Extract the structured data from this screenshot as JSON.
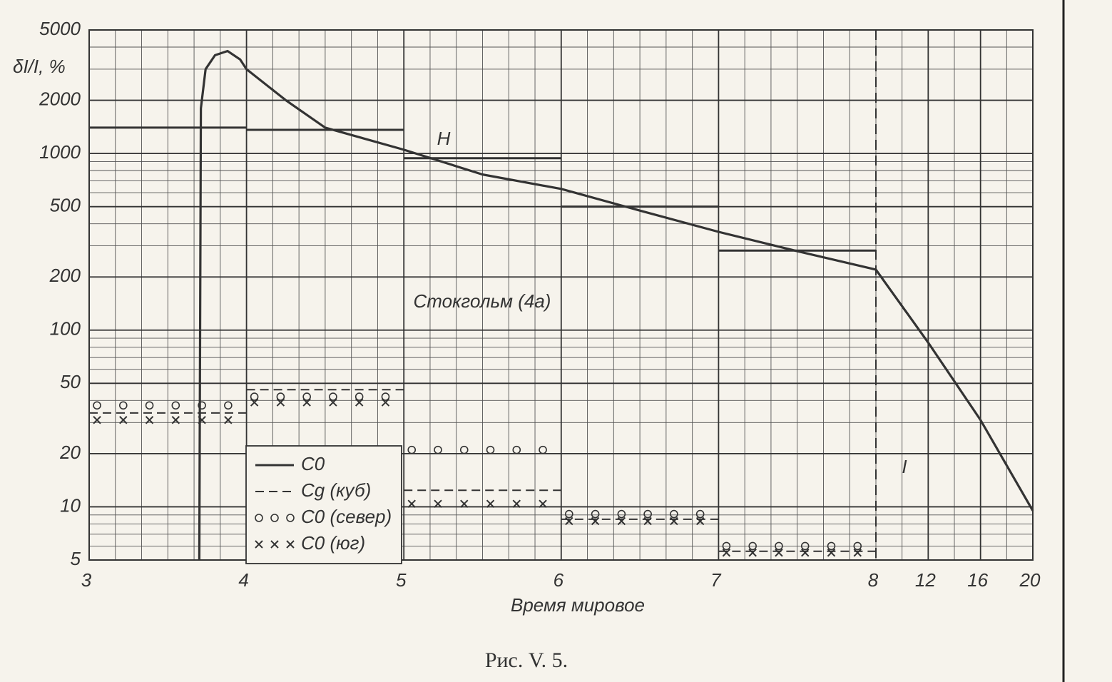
{
  "chart_data": {
    "type": "line",
    "ylabel": "δI/I, %",
    "xlabel": "Время мировое",
    "caption": "Рис. V. 5.",
    "annotations": [
      "H",
      "Стокгольм (4а)",
      "I"
    ],
    "xlim": [
      3,
      20
    ],
    "x_break": 8,
    "xticks": [
      3,
      4,
      5,
      6,
      7,
      8,
      12,
      16,
      20
    ],
    "ylim": [
      5,
      5000
    ],
    "yticks": [
      5,
      10,
      20,
      50,
      100,
      200,
      500,
      1000,
      2000,
      5000
    ],
    "log_y": true,
    "grid": true,
    "minor_grid": true,
    "legend": "lower-left",
    "curve": {
      "x": [
        3.7,
        3.71,
        3.74,
        3.8,
        3.88,
        3.96,
        4.0,
        4.25,
        4.5,
        5.0,
        5.5,
        6.0,
        6.5,
        7.0,
        7.5,
        8.0,
        12,
        16,
        20
      ],
      "values": [
        5,
        1800,
        3000,
        3600,
        3800,
        3400,
        3000,
        2000,
        1400,
        1050,
        760,
        630,
        475,
        360,
        280,
        220,
        85,
        31,
        9.5
      ]
    },
    "step_edges": [
      3,
      4,
      5,
      6,
      7,
      8
    ],
    "series": [
      {
        "name": "C0",
        "style": "solid",
        "color": "#333333",
        "values": [
          1400,
          1360,
          940,
          500,
          282
        ]
      },
      {
        "name": "Cg (куб)",
        "style": "dashed",
        "color": "#333333",
        "values": [
          34,
          46,
          12.4,
          8.5,
          5.6
        ]
      },
      {
        "name": "C0 (север)",
        "style": "circles",
        "color": "#333333",
        "values": [
          37.5,
          42,
          21,
          9.1,
          6.0
        ]
      },
      {
        "name": "C0 (юг)",
        "style": "crosses",
        "color": "#333333",
        "values": [
          31,
          39,
          10.4,
          8.3,
          5.5
        ]
      }
    ]
  }
}
